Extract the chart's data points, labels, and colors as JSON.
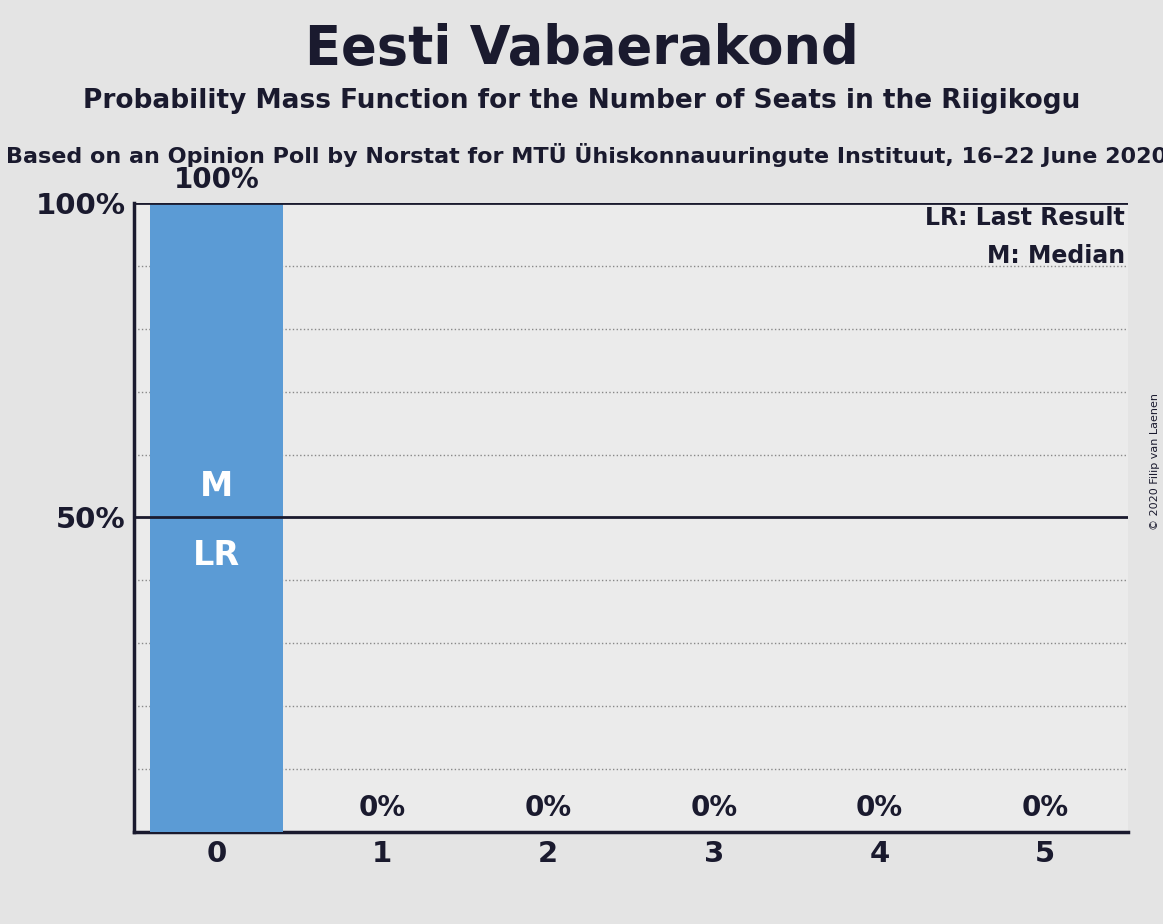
{
  "title": "Eesti Vabaerakond",
  "subtitle": "Probability Mass Function for the Number of Seats in the Riigikogu",
  "source": "Based on an Opinion Poll by Norstat for MTÜ Ühiskonnauuringute Instituut, 16–22 June 2020",
  "copyright": "© 2020 Filip van Laenen",
  "x_values": [
    0,
    1,
    2,
    3,
    4,
    5
  ],
  "y_values": [
    100,
    0,
    0,
    0,
    0,
    0
  ],
  "bar_color": "#5b9bd5",
  "background_color": "#e4e4e4",
  "plot_background_color": "#ebebeb",
  "legend_lr": "LR: Last Result",
  "legend_m": "M: Median",
  "title_fontsize": 38,
  "subtitle_fontsize": 19,
  "source_fontsize": 16,
  "axis_fontsize": 21,
  "bar_label_fontsize": 20,
  "legend_fontsize": 17,
  "inner_label_fontsize": 24,
  "ylim": [
    0,
    100
  ],
  "xlim": [
    -0.5,
    5.5
  ],
  "dark_color": "#1a1a2e",
  "dot_color": "#888888",
  "solid_line_color": "#1a1a2e"
}
